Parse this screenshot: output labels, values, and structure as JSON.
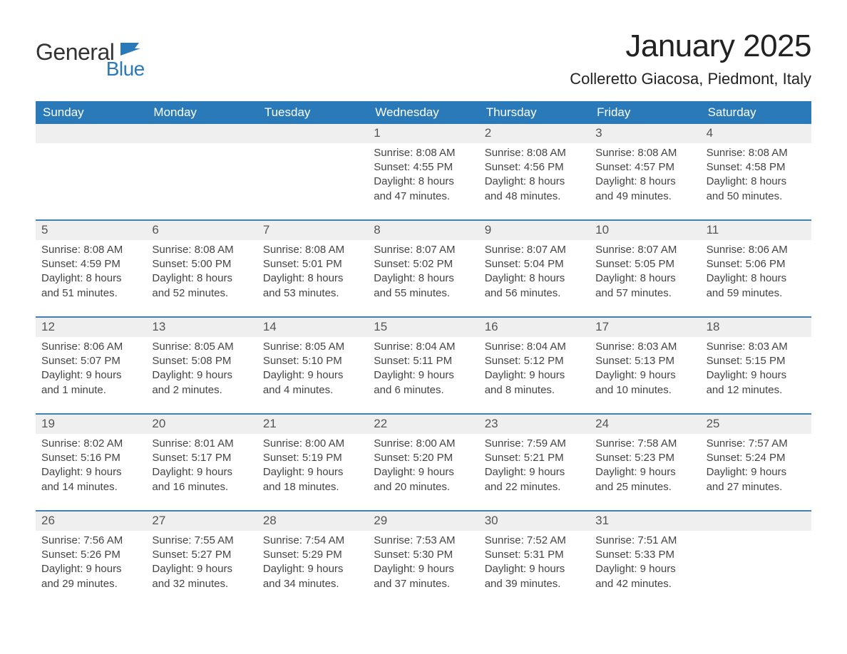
{
  "logo": {
    "text_general": "General",
    "text_blue": "Blue"
  },
  "title": "January 2025",
  "subtitle": "Colleretto Giacosa, Piedmont, Italy",
  "colors": {
    "brand_blue": "#2a7ab9",
    "row_date_bg": "#efefef",
    "border_top": "#3f80b5",
    "page_bg": "#ffffff",
    "text": "#333333"
  },
  "days_of_week": [
    "Sunday",
    "Monday",
    "Tuesday",
    "Wednesday",
    "Thursday",
    "Friday",
    "Saturday"
  ],
  "weeks": [
    [
      {
        "blank": true
      },
      {
        "blank": true
      },
      {
        "blank": true
      },
      {
        "n": "1",
        "sunrise": "8:08 AM",
        "sunset": "4:55 PM",
        "daylight": "8 hours and 47 minutes."
      },
      {
        "n": "2",
        "sunrise": "8:08 AM",
        "sunset": "4:56 PM",
        "daylight": "8 hours and 48 minutes."
      },
      {
        "n": "3",
        "sunrise": "8:08 AM",
        "sunset": "4:57 PM",
        "daylight": "8 hours and 49 minutes."
      },
      {
        "n": "4",
        "sunrise": "8:08 AM",
        "sunset": "4:58 PM",
        "daylight": "8 hours and 50 minutes."
      }
    ],
    [
      {
        "n": "5",
        "sunrise": "8:08 AM",
        "sunset": "4:59 PM",
        "daylight": "8 hours and 51 minutes."
      },
      {
        "n": "6",
        "sunrise": "8:08 AM",
        "sunset": "5:00 PM",
        "daylight": "8 hours and 52 minutes."
      },
      {
        "n": "7",
        "sunrise": "8:08 AM",
        "sunset": "5:01 PM",
        "daylight": "8 hours and 53 minutes."
      },
      {
        "n": "8",
        "sunrise": "8:07 AM",
        "sunset": "5:02 PM",
        "daylight": "8 hours and 55 minutes."
      },
      {
        "n": "9",
        "sunrise": "8:07 AM",
        "sunset": "5:04 PM",
        "daylight": "8 hours and 56 minutes."
      },
      {
        "n": "10",
        "sunrise": "8:07 AM",
        "sunset": "5:05 PM",
        "daylight": "8 hours and 57 minutes."
      },
      {
        "n": "11",
        "sunrise": "8:06 AM",
        "sunset": "5:06 PM",
        "daylight": "8 hours and 59 minutes."
      }
    ],
    [
      {
        "n": "12",
        "sunrise": "8:06 AM",
        "sunset": "5:07 PM",
        "daylight": "9 hours and 1 minute."
      },
      {
        "n": "13",
        "sunrise": "8:05 AM",
        "sunset": "5:08 PM",
        "daylight": "9 hours and 2 minutes."
      },
      {
        "n": "14",
        "sunrise": "8:05 AM",
        "sunset": "5:10 PM",
        "daylight": "9 hours and 4 minutes."
      },
      {
        "n": "15",
        "sunrise": "8:04 AM",
        "sunset": "5:11 PM",
        "daylight": "9 hours and 6 minutes."
      },
      {
        "n": "16",
        "sunrise": "8:04 AM",
        "sunset": "5:12 PM",
        "daylight": "9 hours and 8 minutes."
      },
      {
        "n": "17",
        "sunrise": "8:03 AM",
        "sunset": "5:13 PM",
        "daylight": "9 hours and 10 minutes."
      },
      {
        "n": "18",
        "sunrise": "8:03 AM",
        "sunset": "5:15 PM",
        "daylight": "9 hours and 12 minutes."
      }
    ],
    [
      {
        "n": "19",
        "sunrise": "8:02 AM",
        "sunset": "5:16 PM",
        "daylight": "9 hours and 14 minutes."
      },
      {
        "n": "20",
        "sunrise": "8:01 AM",
        "sunset": "5:17 PM",
        "daylight": "9 hours and 16 minutes."
      },
      {
        "n": "21",
        "sunrise": "8:00 AM",
        "sunset": "5:19 PM",
        "daylight": "9 hours and 18 minutes."
      },
      {
        "n": "22",
        "sunrise": "8:00 AM",
        "sunset": "5:20 PM",
        "daylight": "9 hours and 20 minutes."
      },
      {
        "n": "23",
        "sunrise": "7:59 AM",
        "sunset": "5:21 PM",
        "daylight": "9 hours and 22 minutes."
      },
      {
        "n": "24",
        "sunrise": "7:58 AM",
        "sunset": "5:23 PM",
        "daylight": "9 hours and 25 minutes."
      },
      {
        "n": "25",
        "sunrise": "7:57 AM",
        "sunset": "5:24 PM",
        "daylight": "9 hours and 27 minutes."
      }
    ],
    [
      {
        "n": "26",
        "sunrise": "7:56 AM",
        "sunset": "5:26 PM",
        "daylight": "9 hours and 29 minutes."
      },
      {
        "n": "27",
        "sunrise": "7:55 AM",
        "sunset": "5:27 PM",
        "daylight": "9 hours and 32 minutes."
      },
      {
        "n": "28",
        "sunrise": "7:54 AM",
        "sunset": "5:29 PM",
        "daylight": "9 hours and 34 minutes."
      },
      {
        "n": "29",
        "sunrise": "7:53 AM",
        "sunset": "5:30 PM",
        "daylight": "9 hours and 37 minutes."
      },
      {
        "n": "30",
        "sunrise": "7:52 AM",
        "sunset": "5:31 PM",
        "daylight": "9 hours and 39 minutes."
      },
      {
        "n": "31",
        "sunrise": "7:51 AM",
        "sunset": "5:33 PM",
        "daylight": "9 hours and 42 minutes."
      },
      {
        "blank": true
      }
    ]
  ],
  "labels": {
    "sunrise": "Sunrise:",
    "sunset": "Sunset:",
    "daylight": "Daylight:"
  }
}
